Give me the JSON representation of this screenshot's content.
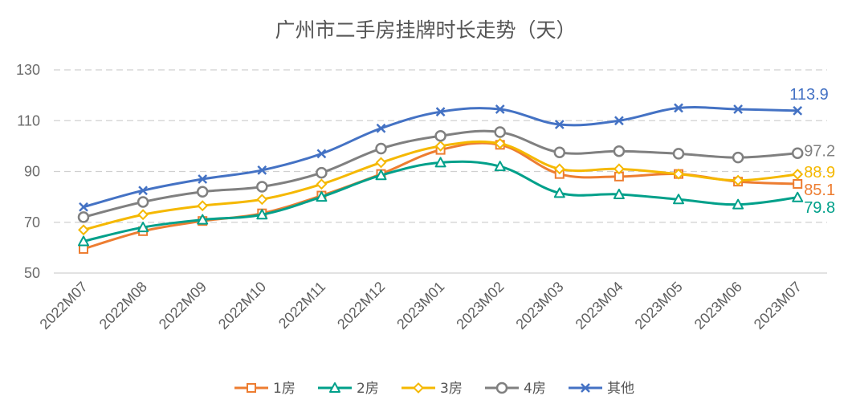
{
  "chart_data": {
    "type": "line",
    "title": "广州市二手房挂牌时长走势（天）",
    "categories": [
      "2022M07",
      "2022M08",
      "2022M09",
      "2022M10",
      "2022M11",
      "2022M12",
      "2023M01",
      "2023M02",
      "2023M03",
      "2023M04",
      "2023M05",
      "2023M06",
      "2023M07"
    ],
    "ylim": [
      50,
      130
    ],
    "yticks": [
      "50",
      "70",
      "90",
      "110",
      "130"
    ],
    "grid": true,
    "legend_position": "bottom",
    "series": [
      {
        "name": "1房",
        "color": "#ED7D31",
        "marker": "square",
        "values": [
          59.5,
          66.5,
          70.5,
          73.5,
          80.5,
          89.0,
          98.5,
          100.5,
          89.0,
          88.0,
          89.0,
          86.0,
          85.1
        ],
        "end_label": "85.1"
      },
      {
        "name": "2房",
        "color": "#00A08A",
        "marker": "triangle",
        "values": [
          62.5,
          68.0,
          71.0,
          73.0,
          80.0,
          88.5,
          93.5,
          92.0,
          81.5,
          81.0,
          79.0,
          77.0,
          79.8
        ],
        "end_label": "79.8"
      },
      {
        "name": "3房",
        "color": "#F5B800",
        "marker": "diamond",
        "values": [
          67.0,
          73.0,
          76.5,
          79.0,
          85.0,
          93.5,
          100.0,
          101.0,
          91.0,
          91.0,
          89.0,
          86.5,
          88.9
        ],
        "end_label": "88.9"
      },
      {
        "name": "4房",
        "color": "#808080",
        "marker": "circle",
        "values": [
          72.0,
          78.0,
          82.0,
          84.0,
          89.5,
          99.0,
          104.0,
          105.5,
          97.5,
          98.0,
          97.0,
          95.5,
          97.2
        ],
        "end_label": "97.2"
      },
      {
        "name": "其他",
        "color": "#4472C4",
        "marker": "x",
        "values": [
          76.0,
          82.5,
          87.0,
          90.5,
          97.0,
          107.0,
          113.5,
          114.5,
          108.5,
          110.0,
          115.0,
          114.5,
          113.9
        ],
        "end_label": "113.9"
      }
    ]
  }
}
